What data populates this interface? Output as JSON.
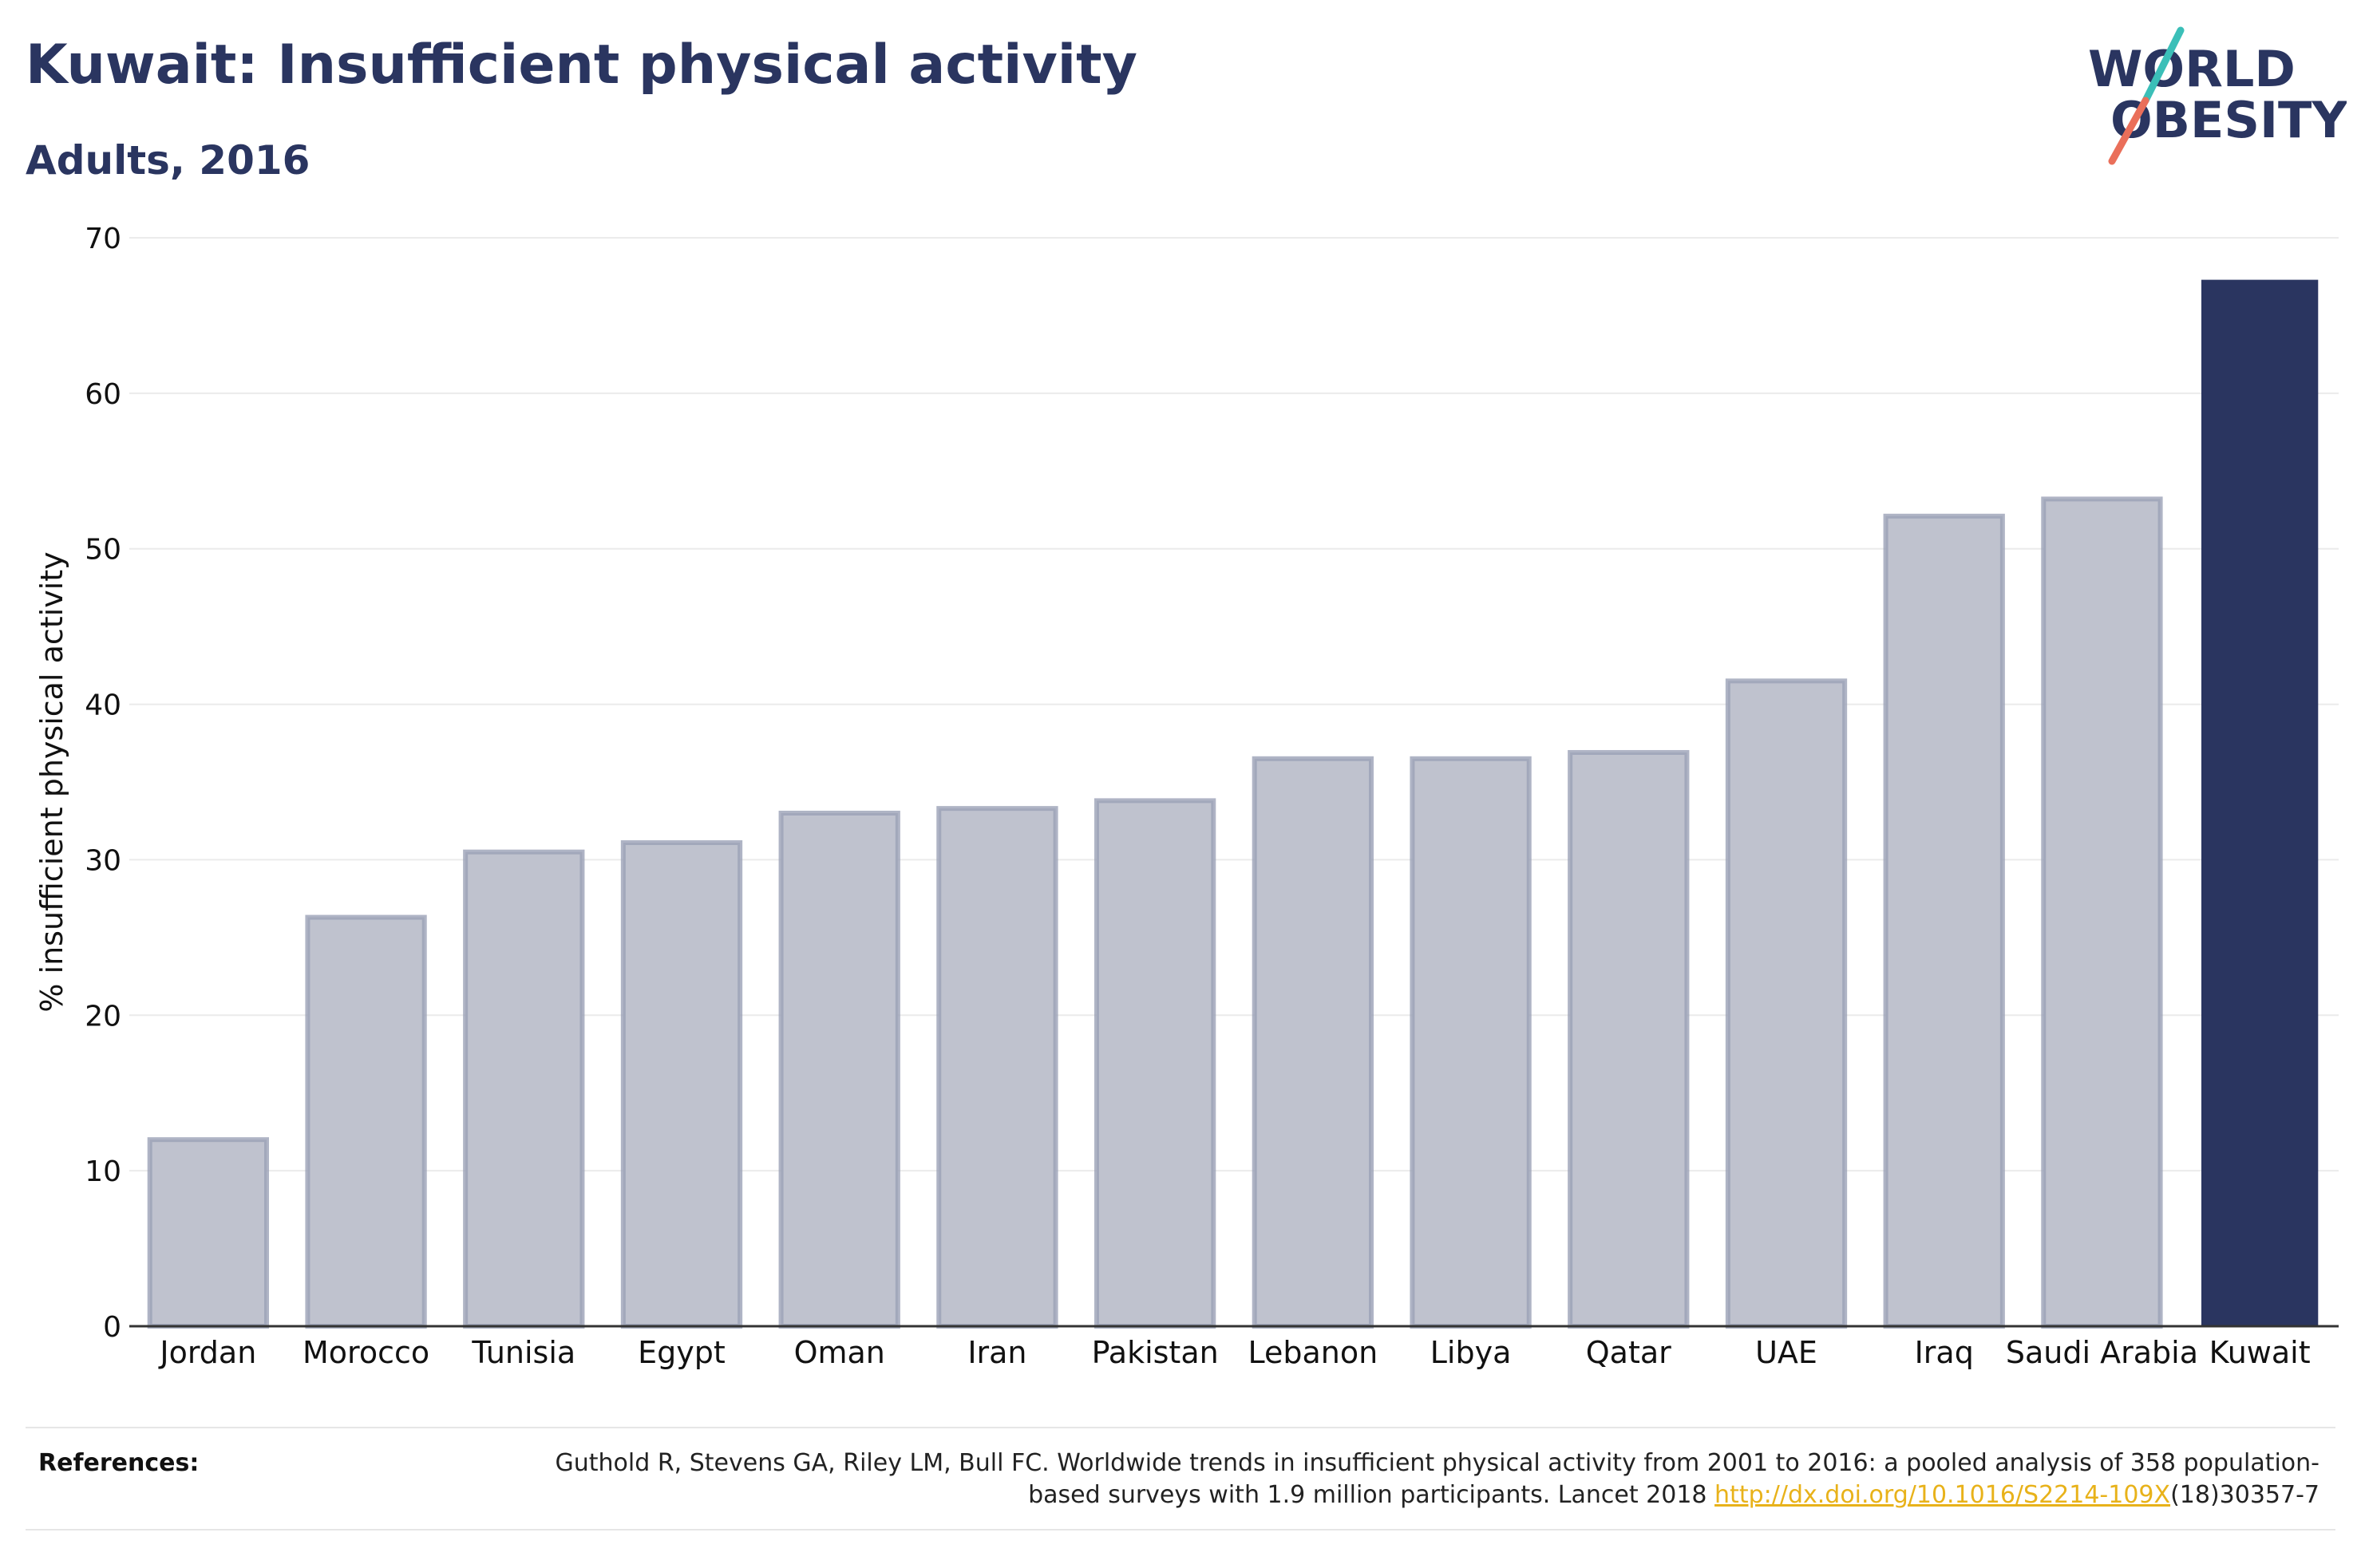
{
  "header": {
    "title": "Kuwait: Insufficient physical activity",
    "subtitle": "Adults, 2016"
  },
  "logo": {
    "line1": "WORLD",
    "line2": "OBESITY",
    "text_color": "#2a3560",
    "slash_top_color": "#3bbfb8",
    "slash_bottom_color": "#ea6f5a"
  },
  "colors": {
    "highlight_bar": "#2a3560",
    "other_bar_fill": "#bfc2ce",
    "other_bar_stroke": "#9ba1b6",
    "gridline": "#ebebeb",
    "link": "#e8b21a"
  },
  "chart_data": {
    "type": "bar",
    "categories": [
      "Jordan",
      "Morocco",
      "Tunisia",
      "Egypt",
      "Oman",
      "Iran",
      "Pakistan",
      "Lebanon",
      "Libya",
      "Qatar",
      "UAE",
      "Iraq",
      "Saudi Arabia",
      "Kuwait"
    ],
    "values": [
      12.0,
      26.3,
      30.5,
      31.1,
      33.0,
      33.3,
      33.8,
      36.5,
      36.5,
      36.9,
      41.5,
      52.1,
      53.2,
      67.3
    ],
    "highlight": "Kuwait",
    "ylabel": "% insufficient physical activity",
    "xlabel": "",
    "ylim": [
      0,
      70
    ],
    "yticks": [
      "0",
      "10",
      "20",
      "30",
      "40",
      "50",
      "60",
      "70"
    ],
    "grid": true
  },
  "references": {
    "label": "References:",
    "text_before_link": "Guthold R, Stevens GA, Riley LM, Bull FC. Worldwide trends in insufficient physical activity from 2001 to 2016: a pooled analysis of 358 population-based surveys with 1.9 million participants. Lancet 2018 ",
    "link_text": "http://dx.doi.org/10.1016/S2214-109X",
    "text_after_link": "(18)30357-7"
  }
}
